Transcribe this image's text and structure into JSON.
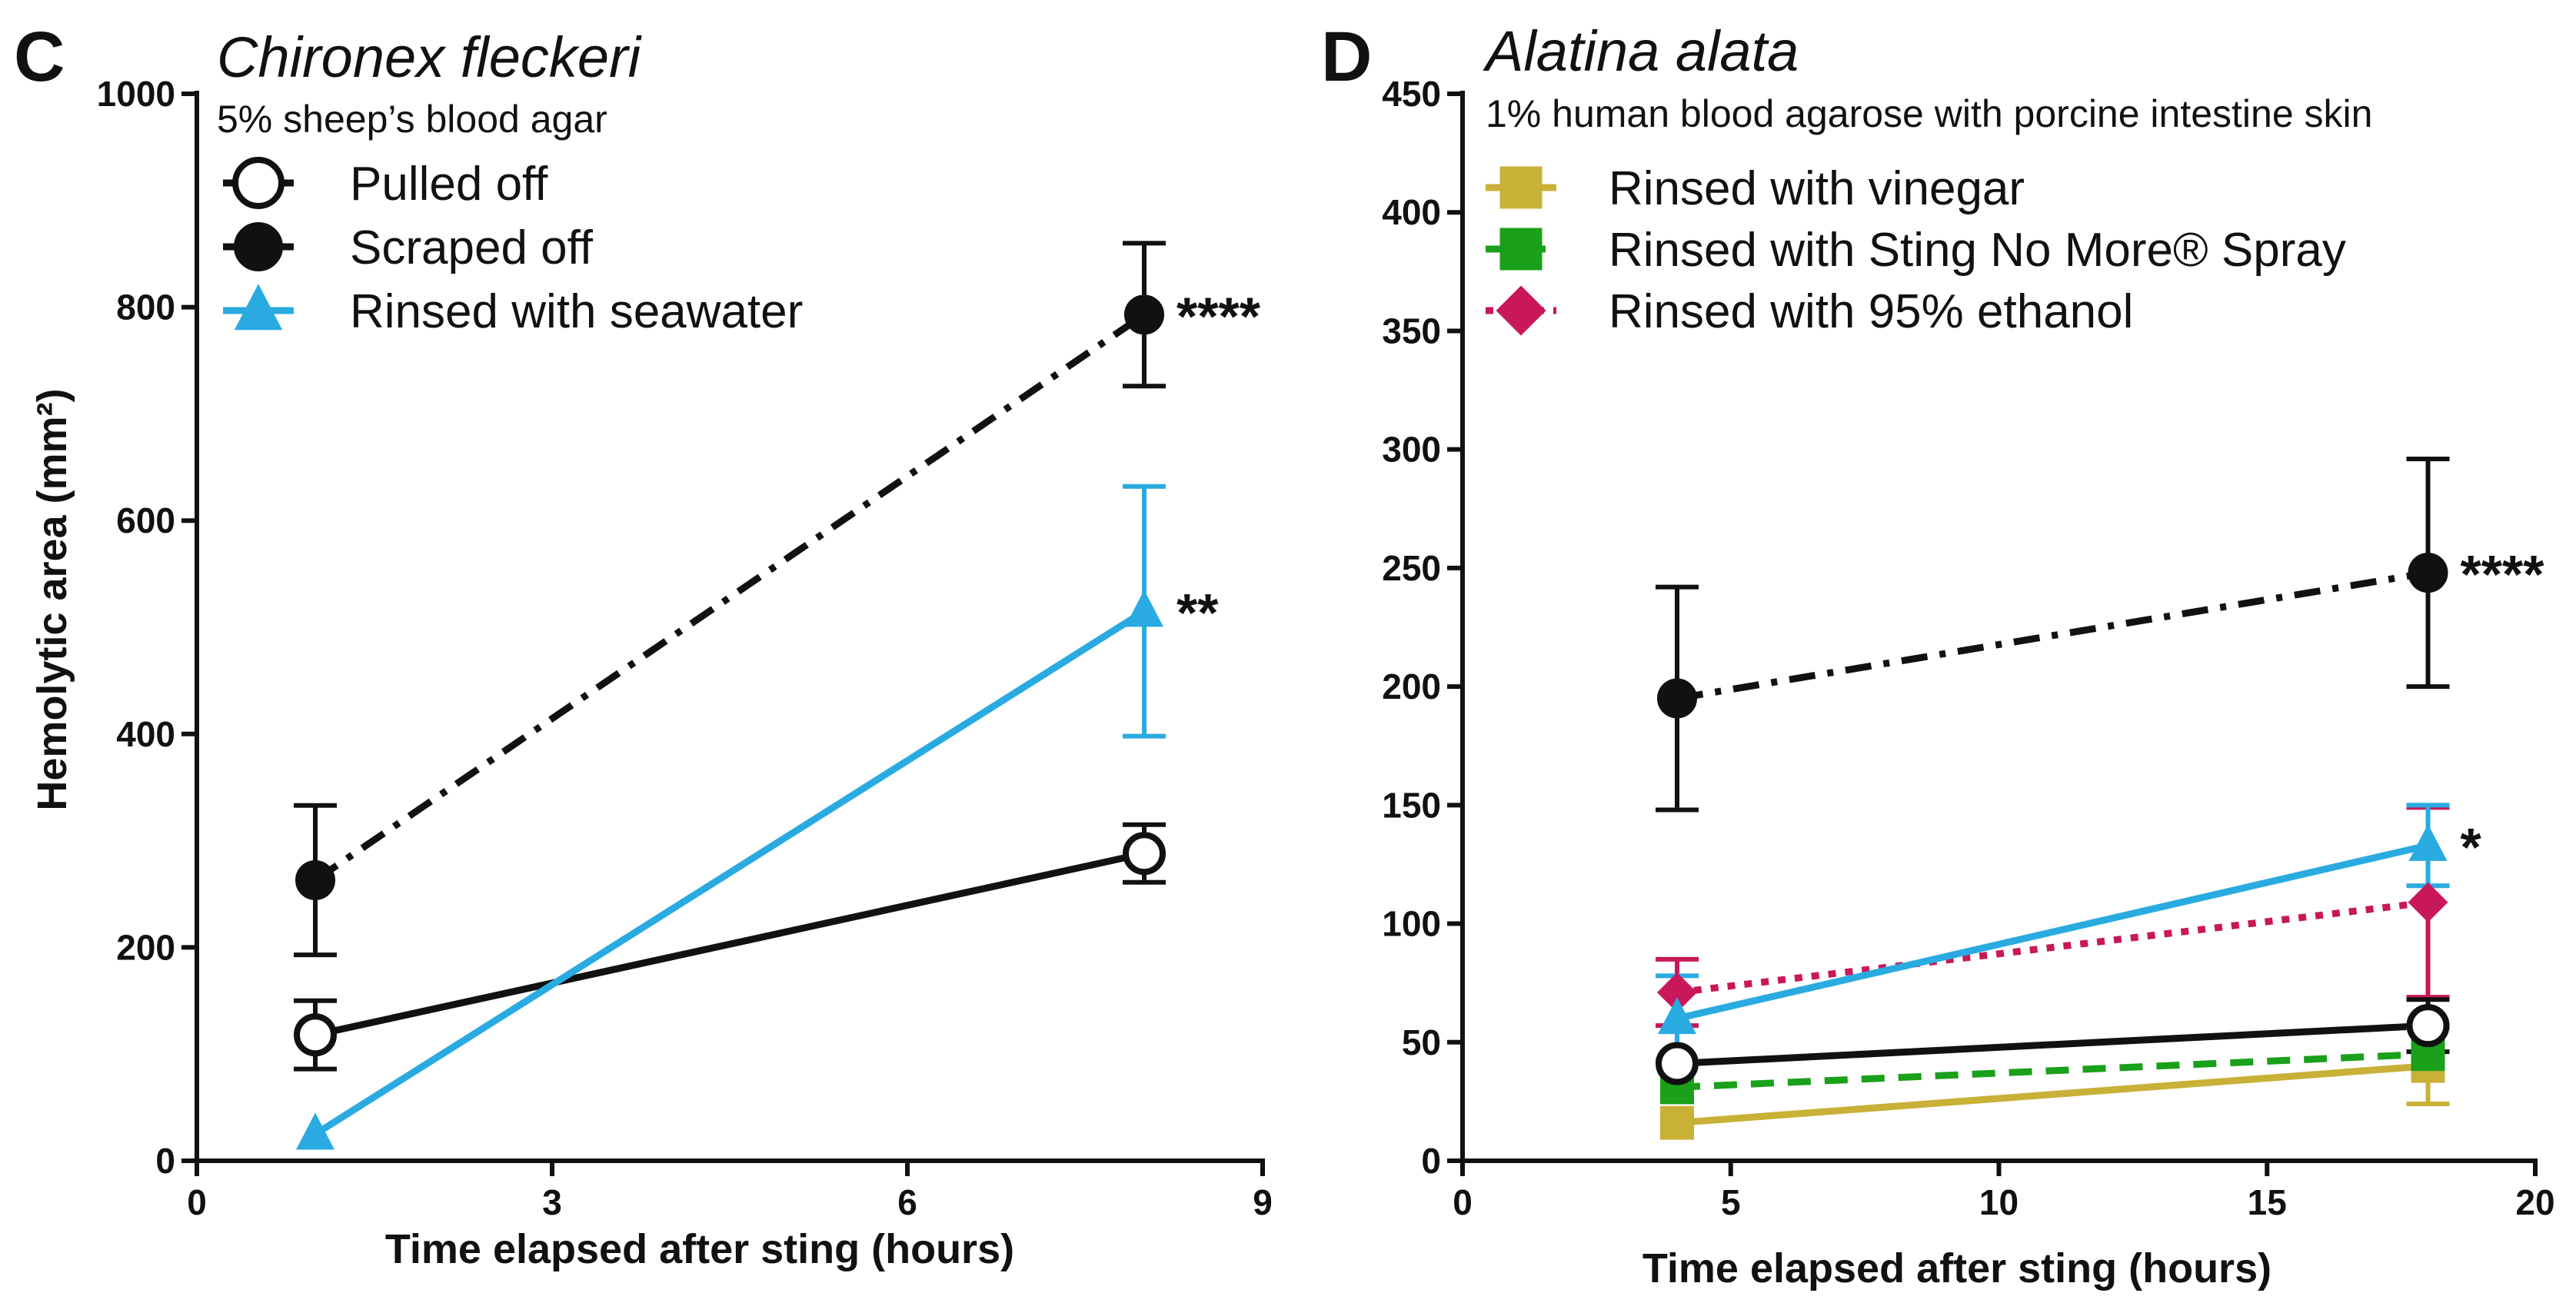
{
  "chart_data": [
    {
      "panel": "C",
      "type": "line",
      "title": "Chironex fleckeri",
      "subtitle": "5% sheep’s blood agar",
      "xlabel": "Time elapsed after sting (hours)",
      "ylabel": "Hemolytic area (mm²)",
      "xlim": [
        0,
        9
      ],
      "ylim": [
        0,
        1000
      ],
      "xticks": [
        0,
        3,
        6,
        9
      ],
      "yticks": [
        0,
        200,
        400,
        600,
        800,
        1000
      ],
      "legend_position": "top-left",
      "series": [
        {
          "name": "Pulled off",
          "marker": "open-circle",
          "color": "#111111",
          "dash": "solid",
          "points": [
            {
              "x": 1,
              "y": 118,
              "err": 32
            },
            {
              "x": 8,
              "y": 288,
              "err": 27
            }
          ],
          "annotation": ""
        },
        {
          "name": "Scraped off",
          "marker": "filled-circle",
          "color": "#111111",
          "dash": "dashdot",
          "points": [
            {
              "x": 1,
              "y": 263,
              "err": 70
            },
            {
              "x": 8,
              "y": 793,
              "err": 67
            }
          ],
          "annotation": "****"
        },
        {
          "name": "Rinsed with seawater",
          "marker": "triangle",
          "color": "#29ABE2",
          "dash": "solid",
          "points": [
            {
              "x": 1,
              "y": 25,
              "err": 0
            },
            {
              "x": 8,
              "y": 515,
              "err": 117
            }
          ],
          "annotation": "**"
        }
      ]
    },
    {
      "panel": "D",
      "type": "line",
      "title": "Alatina alata",
      "subtitle": "1% human blood agarose with porcine intestine skin",
      "xlabel": "Time elapsed after sting (hours)",
      "ylabel": "",
      "xlim": [
        0,
        20
      ],
      "ylim": [
        0,
        450
      ],
      "xticks": [
        0,
        5,
        10,
        15,
        20
      ],
      "yticks": [
        0,
        50,
        100,
        150,
        200,
        250,
        300,
        350,
        400,
        450
      ],
      "legend_position": "top-left",
      "series": [
        {
          "name": "Rinsed with vinegar",
          "marker": "square",
          "color": "#C9B037",
          "dash": "solid",
          "in_legend": true,
          "points": [
            {
              "x": 4,
              "y": 16,
              "err": 0
            },
            {
              "x": 18,
              "y": 40,
              "err": 16
            }
          ],
          "annotation": ""
        },
        {
          "name": "Rinsed with Sting No More® Spray",
          "marker": "square",
          "color": "#1AA01A",
          "dash": "dashed",
          "in_legend": true,
          "points": [
            {
              "x": 4,
              "y": 31,
              "err": 0
            },
            {
              "x": 18,
              "y": 45,
              "err": 0
            }
          ],
          "annotation": ""
        },
        {
          "name": "Rinsed with 95% ethanol",
          "marker": "diamond",
          "color": "#C8185A",
          "dash": "dotted",
          "in_legend": true,
          "points": [
            {
              "x": 4,
              "y": 71,
              "err": 14
            },
            {
              "x": 18,
              "y": 109,
              "err": 40
            }
          ],
          "annotation": ""
        },
        {
          "name": "Rinsed with seawater",
          "marker": "triangle",
          "color": "#29ABE2",
          "dash": "solid",
          "in_legend": false,
          "points": [
            {
              "x": 4,
              "y": 60,
              "err": 18
            },
            {
              "x": 18,
              "y": 133,
              "err": 17
            }
          ],
          "annotation": "*"
        },
        {
          "name": "Pulled off",
          "marker": "open-circle",
          "color": "#111111",
          "dash": "solid",
          "in_legend": false,
          "points": [
            {
              "x": 4,
              "y": 41,
              "err": 0
            },
            {
              "x": 18,
              "y": 57,
              "err": 11
            }
          ],
          "annotation": ""
        },
        {
          "name": "Scraped off",
          "marker": "filled-circle",
          "color": "#111111",
          "dash": "dashdot",
          "in_legend": false,
          "points": [
            {
              "x": 4,
              "y": 195,
              "err": 47
            },
            {
              "x": 18,
              "y": 248,
              "err": 48
            }
          ],
          "annotation": "****"
        }
      ]
    }
  ]
}
